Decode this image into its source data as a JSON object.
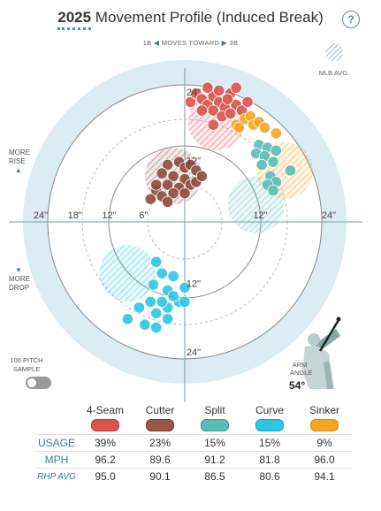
{
  "header": {
    "year": "2025",
    "title": "Movement Profile (Induced Break)",
    "help": "?"
  },
  "direction": {
    "left": "1B",
    "label": "MOVES TOWARD",
    "right": "3B"
  },
  "mlb_avg_label": "MLB AVG.",
  "side_labels": {
    "rise": [
      "MORE",
      "RISE"
    ],
    "drop": [
      "MORE",
      "DROP"
    ]
  },
  "sample": {
    "label": [
      "100 PITCH",
      "SAMPLE"
    ]
  },
  "arm": {
    "label": [
      "ARM",
      "ANGLE"
    ],
    "value": "54°"
  },
  "chart_data": {
    "type": "scatter",
    "title": "Movement Profile (Induced Break)",
    "x_tick_labels": [
      "24\"",
      "18\"",
      "12\"",
      "6\"",
      "12\"",
      "24\""
    ],
    "y_tick_labels": [
      "24\"",
      "12\"",
      "12\"",
      "24\""
    ],
    "xlim": [
      -30,
      30
    ],
    "ylim": [
      -30,
      30
    ],
    "series": [
      {
        "name": "4-Seam",
        "color": "#d9534f",
        "avg": [
          5.5,
          17.5
        ],
        "points": [
          [
            1,
            21
          ],
          [
            2,
            22.5
          ],
          [
            3,
            21.5
          ],
          [
            4,
            20.5
          ],
          [
            5,
            22
          ],
          [
            6,
            21
          ],
          [
            7,
            20
          ],
          [
            8,
            22.5
          ],
          [
            9,
            20.5
          ],
          [
            3,
            19.5
          ],
          [
            5,
            19.5
          ],
          [
            6.5,
            18.5
          ],
          [
            8,
            19
          ],
          [
            10,
            19.5
          ],
          [
            4,
            23.5
          ],
          [
            6,
            23
          ],
          [
            9,
            23.5
          ],
          [
            7.5,
            21.5
          ],
          [
            11,
            21
          ],
          [
            5,
            17
          ]
        ]
      },
      {
        "name": "Cutter",
        "color": "#8f4a3d",
        "avg": [
          -2,
          8
        ],
        "points": [
          [
            -3,
            10
          ],
          [
            -1,
            10.5
          ],
          [
            0,
            9.5
          ],
          [
            1,
            10
          ],
          [
            2,
            9
          ],
          [
            -4,
            8.5
          ],
          [
            -2,
            8
          ],
          [
            0,
            7.5
          ],
          [
            -3,
            6.5
          ],
          [
            -1,
            6
          ],
          [
            1,
            6.5
          ],
          [
            2,
            7
          ],
          [
            -5,
            5.5
          ],
          [
            -4,
            4.5
          ],
          [
            -2,
            5
          ],
          [
            0,
            5
          ],
          [
            -6,
            4
          ],
          [
            -3,
            3.5
          ],
          [
            -5,
            6.5
          ],
          [
            3,
            8
          ]
        ]
      },
      {
        "name": "Split",
        "color": "#5bbcb6",
        "avg": [
          12.5,
          3
        ],
        "points": [
          [
            13,
            13.5
          ],
          [
            14.5,
            13
          ],
          [
            16,
            12.5
          ],
          [
            12.5,
            12
          ],
          [
            14,
            11.5
          ],
          [
            15.5,
            10.5
          ],
          [
            13.5,
            10
          ],
          [
            15,
            8
          ],
          [
            16,
            7
          ],
          [
            14.5,
            6.5
          ],
          [
            15.5,
            5.5
          ],
          [
            18.5,
            9
          ]
        ]
      },
      {
        "name": "Curve",
        "color": "#2ec5e2",
        "avg": [
          -10,
          -9
        ],
        "points": [
          [
            -5,
            -7
          ],
          [
            -4,
            -9
          ],
          [
            -2,
            -9.5
          ],
          [
            -5.5,
            -11
          ],
          [
            -3,
            -12
          ],
          [
            -1,
            -14
          ],
          [
            -3,
            -15
          ],
          [
            -5,
            -16
          ],
          [
            -8,
            -15
          ],
          [
            -10,
            -17
          ],
          [
            -7,
            -18
          ],
          [
            -5,
            -18.5
          ],
          [
            -3,
            -17
          ],
          [
            0,
            -14
          ],
          [
            0,
            -11.5
          ],
          [
            -2,
            -13
          ],
          [
            -4,
            -14
          ],
          [
            -6,
            -14
          ]
        ]
      },
      {
        "name": "Sinker",
        "color": "#f5a524",
        "avg": [
          17.5,
          9
        ],
        "points": [
          [
            9,
            17
          ],
          [
            10.5,
            18
          ],
          [
            11.5,
            18.5
          ],
          [
            12,
            17
          ],
          [
            13,
            17.5
          ],
          [
            14,
            16.5
          ],
          [
            16,
            15.5
          ],
          [
            9.5,
            16.5
          ]
        ]
      }
    ]
  },
  "legend": {
    "pitches": [
      {
        "name": "4-Seam",
        "color": "#d9534f",
        "border": "#c0393f",
        "usage": "39%",
        "mph": "96.2",
        "rhp_avg": "95.0"
      },
      {
        "name": "Cutter",
        "color": "#9b5648",
        "border": "#7a3d31",
        "usage": "23%",
        "mph": "89.6",
        "rhp_avg": "90.1"
      },
      {
        "name": "Split",
        "color": "#5bbcb6",
        "border": "#3a9a94",
        "usage": "15%",
        "mph": "91.2",
        "rhp_avg": "86.5"
      },
      {
        "name": "Curve",
        "color": "#2ec5e2",
        "border": "#15a0bb",
        "usage": "15%",
        "mph": "81.8",
        "rhp_avg": "80.6"
      },
      {
        "name": "Sinker",
        "color": "#f5a524",
        "border": "#d9861a",
        "usage": "9%",
        "mph": "96.0",
        "rhp_avg": "94.1"
      }
    ],
    "rows": {
      "usage": "USAGE",
      "mph": "MPH",
      "rhp_avg": "RHP AVG"
    }
  }
}
